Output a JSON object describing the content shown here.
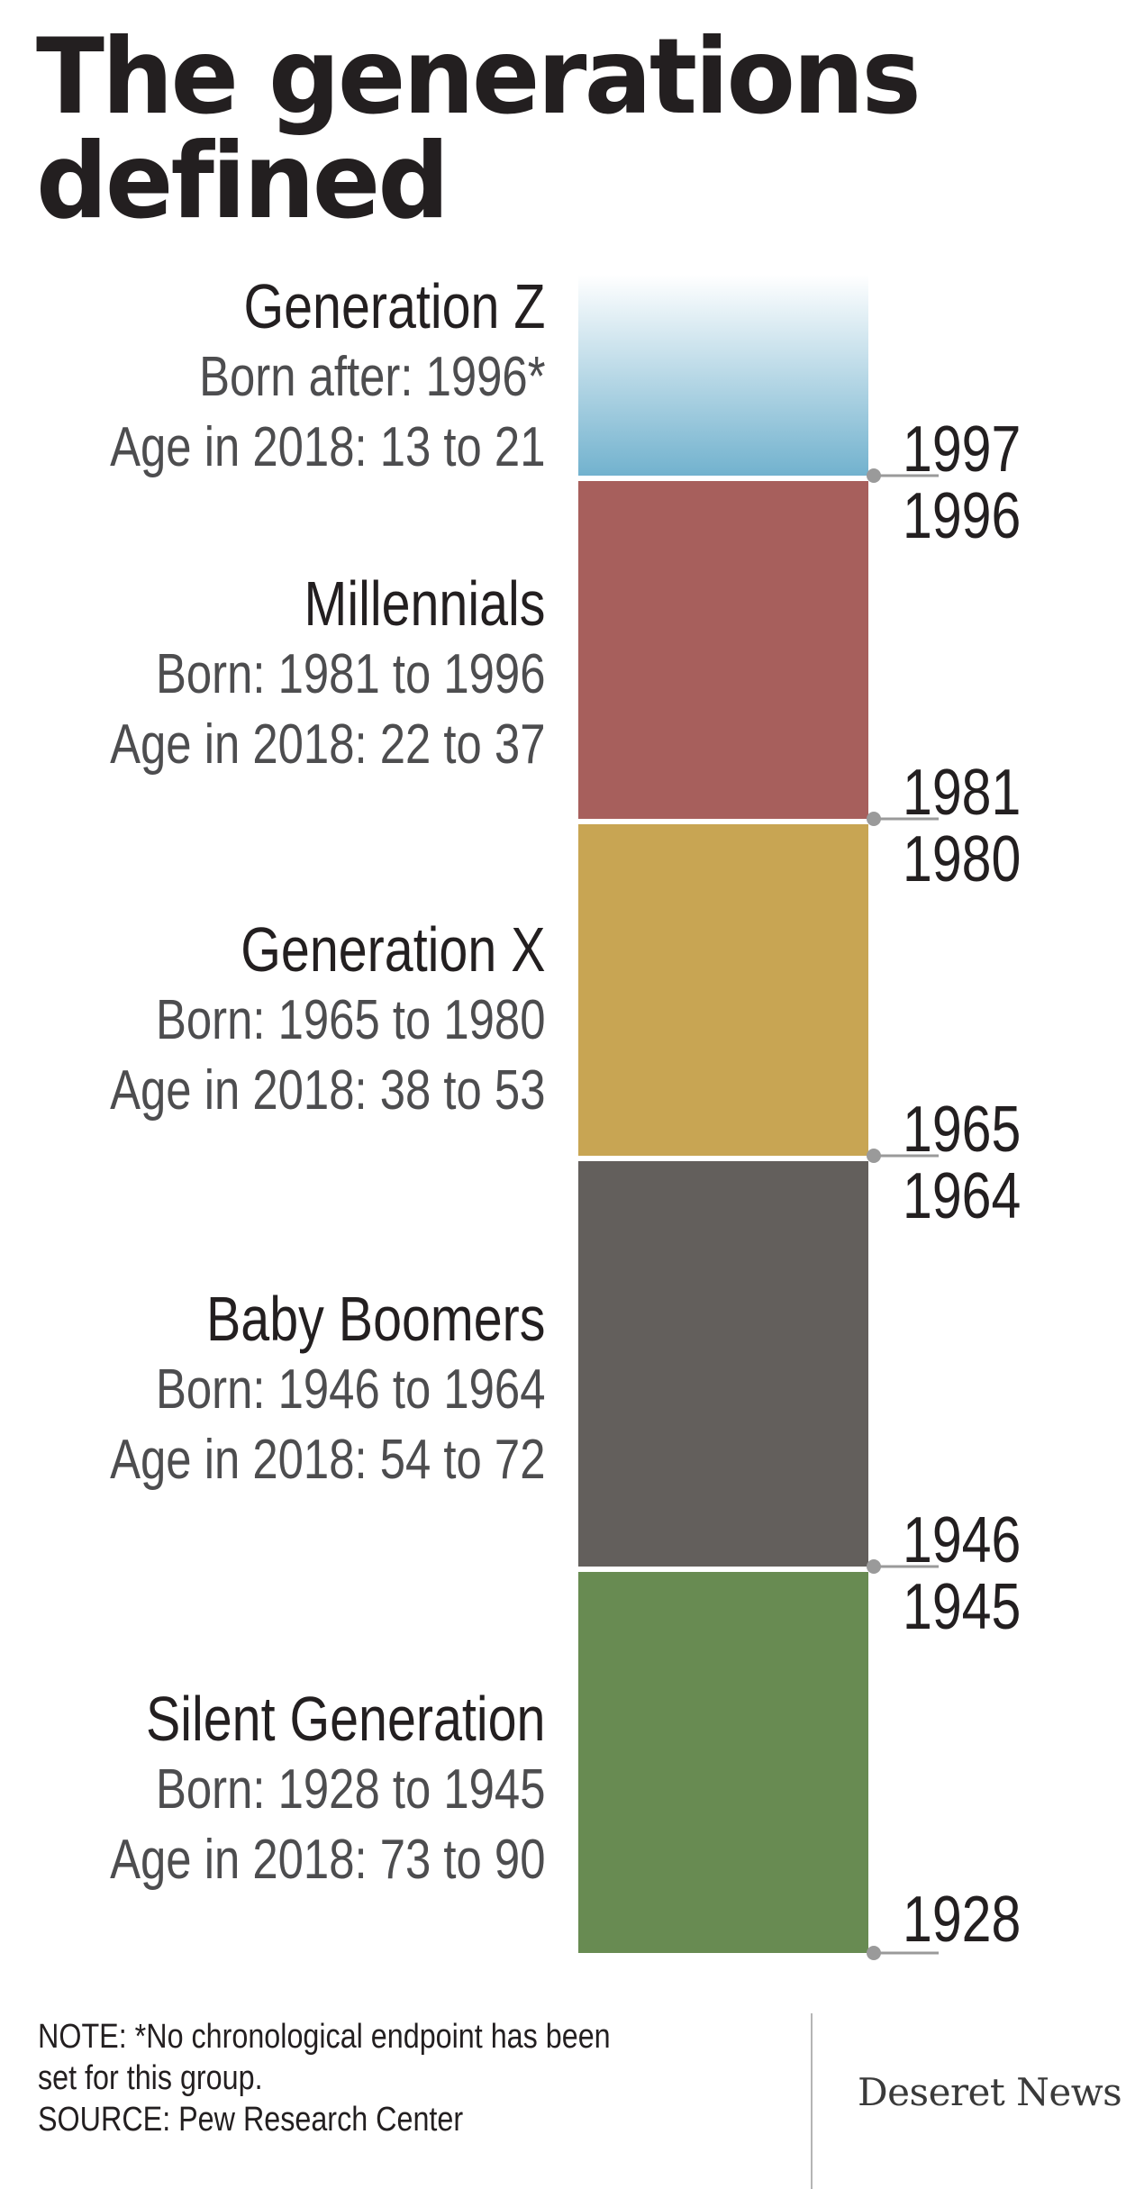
{
  "title": {
    "line1": "The generations",
    "line2": "defined"
  },
  "chart_data": {
    "type": "bar",
    "orientation": "stacked-vertical-timeline",
    "title": "The generations defined",
    "categories": [
      "Generation Z",
      "Millennials",
      "Generation X",
      "Baby Boomers",
      "Silent Generation"
    ],
    "series": [
      {
        "name": "Generation Z",
        "start": 1997,
        "end": null,
        "born_text": "Born after: 1996*",
        "age_text": "Age in 2018: 13 to 21",
        "color": "#7ab6d1"
      },
      {
        "name": "Millennials",
        "start": 1981,
        "end": 1996,
        "born_text": "Born: 1981 to 1996",
        "age_text": "Age in 2018: 22 to 37",
        "color": "#a75f5c"
      },
      {
        "name": "Generation X",
        "start": 1965,
        "end": 1980,
        "born_text": "Born: 1965 to 1980",
        "age_text": "Age in 2018: 38 to 53",
        "color": "#c8a553"
      },
      {
        "name": "Baby Boomers",
        "start": 1946,
        "end": 1964,
        "born_text": "Born: 1946 to 1964",
        "age_text": "Age in 2018: 54 to 72",
        "color": "#635f5c"
      },
      {
        "name": "Silent Generation",
        "start": 1928,
        "end": 1945,
        "born_text": "Born: 1928 to 1945",
        "age_text": "Age in 2018: 73 to 90",
        "color": "#688b52"
      }
    ],
    "year_labels": [
      "1997",
      "1996",
      "1981",
      "1980",
      "1965",
      "1964",
      "1946",
      "1945",
      "1928"
    ],
    "colors": {
      "marker": "#9a9a9a",
      "text": "#231f20",
      "subtext": "#4d4d4f"
    }
  },
  "footer": {
    "note_line1": "NOTE: *No chronological endpoint has been",
    "note_line2": "set for this group.",
    "source": "SOURCE: Pew Research Center",
    "logo": "Deseret News"
  }
}
